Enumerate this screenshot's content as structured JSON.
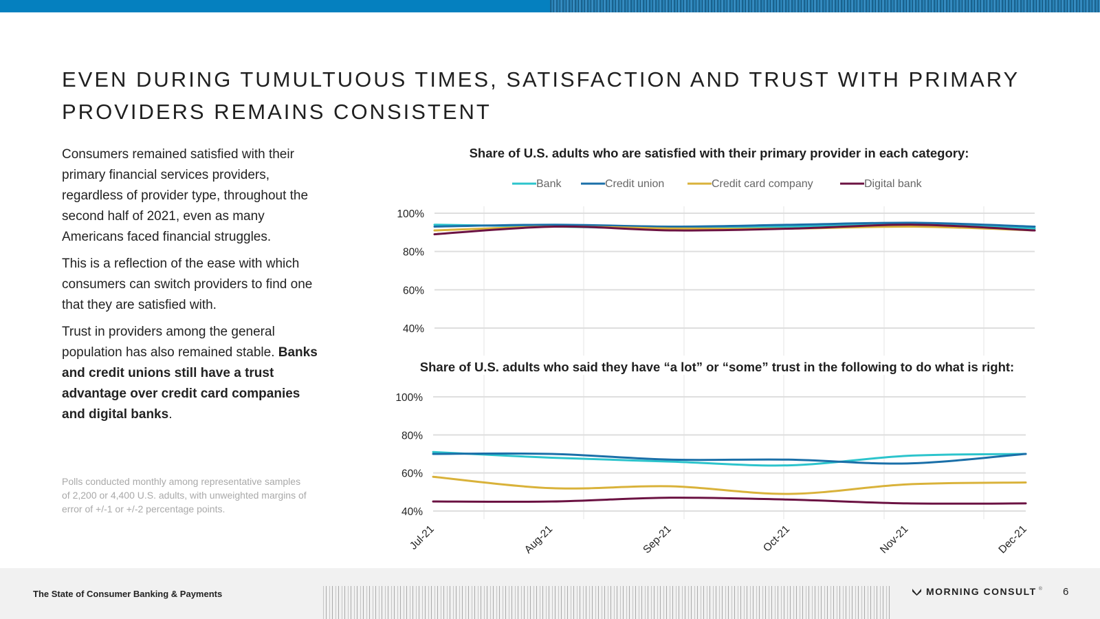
{
  "header": {
    "title": "EVEN DURING TUMULTUOUS TIMES, SATISFACTION AND TRUST WITH PRIMARY PROVIDERS REMAINS CONSISTENT"
  },
  "body": {
    "p1": "Consumers remained satisfied with their primary financial services providers, regardless of provider type, throughout the second half of 2021, even as many Americans faced financial struggles.",
    "p2": "This is a reflection of the ease with which consumers can switch providers to find one that they are satisfied with.",
    "p3_prefix": "Trust in providers among the general population has also remained stable. ",
    "p3_bold": "Banks and credit unions still have a trust advantage over credit card companies and digital banks",
    "p3_suffix": ".",
    "footnote": "Polls conducted monthly among representative samples of 2,200 or 4,400 U.S. adults, with unweighted margins of error of +/-1 or +/-2 percentage points."
  },
  "footer": {
    "report_title": "The State of Consumer Banking & Payments",
    "brand": "MORNING CONSULT",
    "trademark": "®",
    "page_number": "6"
  },
  "colors": {
    "Bank": "#2cc4cc",
    "Credit union": "#1a6fa8",
    "Credit card company": "#d9b23a",
    "Digital bank": "#6b1242",
    "top_bar": "#0580bf"
  },
  "chart_data": [
    {
      "type": "line",
      "title": "Share of U.S. adults who are satisfied with their primary provider in each category:",
      "categories": [
        "Jul-21",
        "Aug-21",
        "Sep-21",
        "Oct-21",
        "Nov-21",
        "Dec-21"
      ],
      "y_ticks": [
        "100%",
        "80%",
        "60%",
        "40%"
      ],
      "ylim": [
        40,
        100
      ],
      "legend": "top",
      "series": [
        {
          "name": "Bank",
          "values": [
            94,
            93,
            92,
            93,
            94,
            92
          ]
        },
        {
          "name": "Credit union",
          "values": [
            93,
            94,
            93,
            94,
            95,
            93
          ]
        },
        {
          "name": "Credit card company",
          "values": [
            91,
            93,
            92,
            92,
            93,
            91
          ]
        },
        {
          "name": "Digital bank",
          "values": [
            89,
            93,
            91,
            92,
            94,
            91
          ]
        }
      ]
    },
    {
      "type": "line",
      "title": "Share of U.S. adults who said they have “a lot” or “some” trust in the following to do what is right:",
      "categories": [
        "Jul-21",
        "Aug-21",
        "Sep-21",
        "Oct-21",
        "Nov-21",
        "Dec-21"
      ],
      "y_ticks": [
        "100%",
        "80%",
        "60%",
        "40%"
      ],
      "ylim": [
        40,
        100
      ],
      "series": [
        {
          "name": "Bank",
          "values": [
            71,
            68,
            66,
            64,
            69,
            70
          ]
        },
        {
          "name": "Credit union",
          "values": [
            70,
            70,
            67,
            67,
            65,
            70
          ]
        },
        {
          "name": "Credit card company",
          "values": [
            58,
            52,
            53,
            49,
            54,
            55
          ]
        },
        {
          "name": "Digital bank",
          "values": [
            45,
            45,
            47,
            46,
            44,
            44
          ]
        }
      ]
    }
  ]
}
